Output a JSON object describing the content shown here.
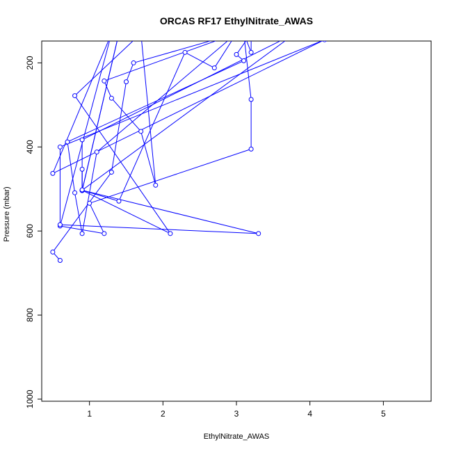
{
  "chart_data": {
    "type": "line",
    "title": "ORCAS RF17 EthylNitrate_AWAS",
    "xlabel": "EthylNitrate_AWAS",
    "ylabel": "Pressure (mbar)",
    "xlim": [
      0.35,
      5.65
    ],
    "ylim": [
      1005,
      148
    ],
    "y_reversed": true,
    "xticks": [
      1,
      2,
      3,
      4,
      5
    ],
    "yticks": [
      200,
      400,
      600,
      800,
      1000
    ],
    "grid": false,
    "legend": "none",
    "line_color": "#0000ff",
    "marker": "open-circle",
    "series": [
      {
        "points": [
          [
            0.6,
            670
          ],
          [
            0.5,
            650
          ],
          [
            1.3,
            460
          ],
          [
            1.5,
            245
          ],
          [
            1.6,
            200
          ],
          [
            3.0,
            130
          ],
          [
            1.2,
            243
          ],
          [
            1.3,
            284
          ],
          [
            1.7,
            363
          ],
          [
            1.9,
            491
          ],
          [
            1.7,
            130
          ],
          [
            0.8,
            278
          ],
          [
            2.1,
            606
          ],
          [
            0.9,
            503
          ],
          [
            1.4,
            529
          ],
          [
            2.3,
            175
          ],
          [
            2.7,
            212
          ],
          [
            3.0,
            130
          ],
          [
            1.1,
            412
          ],
          [
            0.9,
            606
          ],
          [
            0.8,
            509
          ],
          [
            0.7,
            388
          ],
          [
            3.1,
            195
          ],
          [
            3.0,
            180
          ],
          [
            3.2,
            130
          ],
          [
            3.2,
            175
          ],
          [
            3.1,
            130
          ],
          [
            3.2,
            287
          ],
          [
            3.2,
            405
          ],
          [
            1.0,
            534
          ],
          [
            1.2,
            606
          ],
          [
            0.6,
            588
          ],
          [
            1.3,
            130
          ],
          [
            0.5,
            463
          ],
          [
            4.2,
            145
          ],
          [
            0.6,
            400
          ],
          [
            0.6,
            585
          ],
          [
            3.3,
            606
          ],
          [
            0.9,
            503
          ],
          [
            1.4,
            130
          ],
          [
            0.9,
            504
          ],
          [
            0.9,
            453
          ],
          [
            0.9,
            503
          ],
          [
            3.8,
            130
          ],
          [
            0.9,
            383
          ],
          [
            0.9,
            502
          ]
        ]
      }
    ]
  }
}
